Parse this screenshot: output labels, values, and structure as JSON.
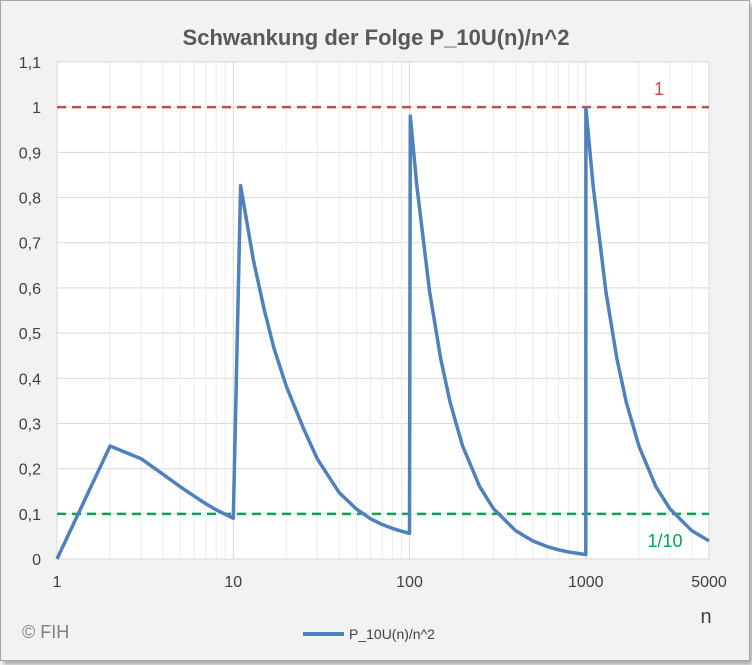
{
  "chart_data": {
    "type": "line",
    "title": "Schwankung der Folge P_10U(n)/n^2",
    "xlabel": "n",
    "ylabel": "",
    "x_scale": "log",
    "xlim": [
      1,
      5000
    ],
    "ylim": [
      0,
      1.1
    ],
    "x_ticks": [
      "1",
      "10",
      "100",
      "1000",
      "5000"
    ],
    "y_ticks": [
      "0",
      "0,1",
      "0,2",
      "0,3",
      "0,4",
      "0,5",
      "0,6",
      "0,7",
      "0,8",
      "0,9",
      "1",
      "1,1"
    ],
    "grid": true,
    "legend_position": "bottom",
    "series": [
      {
        "name": "P_10U(n)/n^2",
        "color": "#4f81bd",
        "x": [
          1,
          2,
          3,
          4,
          5,
          6,
          7,
          8,
          9,
          10,
          11,
          13,
          15,
          17,
          20,
          25,
          30,
          40,
          50,
          60,
          70,
          80,
          90,
          100,
          101,
          110,
          130,
          150,
          170,
          200,
          250,
          300,
          400,
          500,
          600,
          700,
          800,
          900,
          1000,
          1001,
          1100,
          1300,
          1500,
          1700,
          2000,
          2500,
          3000,
          4000,
          5000
        ],
        "values": [
          0,
          0.25,
          0.222,
          0.1875,
          0.16,
          0.139,
          0.122,
          0.109,
          0.099,
          0.09,
          0.8264,
          0.6627,
          0.5511,
          0.4671,
          0.3825,
          0.2896,
          0.2211,
          0.1462,
          0.1105,
          0.0893,
          0.0764,
          0.0677,
          0.0615,
          0.0567,
          0.9803,
          0.8264,
          0.5917,
          0.4444,
          0.346,
          0.25,
          0.16,
          0.1111,
          0.0625,
          0.04,
          0.0278,
          0.0204,
          0.0156,
          0.0123,
          0.01,
          0.998,
          0.8264,
          0.5917,
          0.4444,
          0.346,
          0.25,
          0.16,
          0.1111,
          0.0625,
          0.04
        ]
      }
    ],
    "reference_lines": [
      {
        "y": 1,
        "label": "1",
        "color": "#c0504d"
      },
      {
        "y": 0.1,
        "label": "1/10",
        "color": "#00a651"
      }
    ]
  },
  "legend_label": "P_10U(n)/n^2",
  "copyright": "© FIH"
}
